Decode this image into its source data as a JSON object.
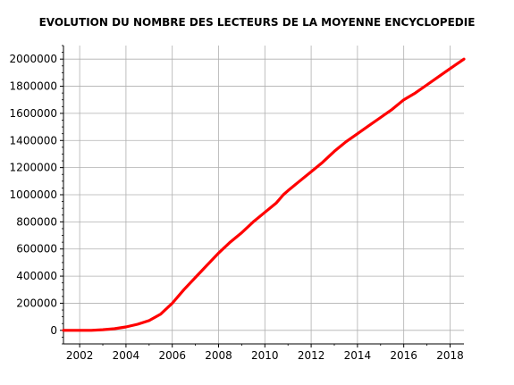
{
  "chart_data": {
    "type": "line",
    "title": "EVOLUTION DU NOMBRE DES LECTEURS DE LA MOYENNE ENCYCLOPEDIE",
    "xlabel": "",
    "ylabel": "",
    "xlim": [
      2001.3,
      2018.6
    ],
    "ylim": [
      -100000,
      2100000
    ],
    "x_ticks": [
      2002,
      2004,
      2006,
      2008,
      2010,
      2012,
      2014,
      2016,
      2018
    ],
    "y_ticks": [
      0,
      200000,
      400000,
      600000,
      800000,
      1000000,
      1200000,
      1400000,
      1600000,
      1800000,
      2000000
    ],
    "grid": true,
    "series": [
      {
        "color": "#ff0000",
        "x": [
          2001.3,
          2002.0,
          2002.5,
          2003.0,
          2003.5,
          2004.0,
          2004.5,
          2005.0,
          2005.5,
          2006.0,
          2006.5,
          2007.0,
          2007.5,
          2008.0,
          2008.5,
          2009.0,
          2009.5,
          2010.0,
          2010.5,
          2010.8,
          2011.0,
          2011.5,
          2012.0,
          2012.5,
          2013.0,
          2013.5,
          2014.0,
          2014.5,
          2015.0,
          2015.5,
          2016.0,
          2016.5,
          2017.0,
          2017.5,
          2018.0,
          2018.6
        ],
        "y": [
          0,
          0,
          0,
          5000,
          12000,
          25000,
          45000,
          72000,
          120000,
          200000,
          300000,
          390000,
          480000,
          570000,
          650000,
          720000,
          800000,
          870000,
          940000,
          1000000,
          1030000,
          1100000,
          1170000,
          1240000,
          1320000,
          1390000,
          1450000,
          1510000,
          1570000,
          1630000,
          1700000,
          1750000,
          1810000,
          1870000,
          1930000,
          2000000
        ]
      }
    ]
  }
}
